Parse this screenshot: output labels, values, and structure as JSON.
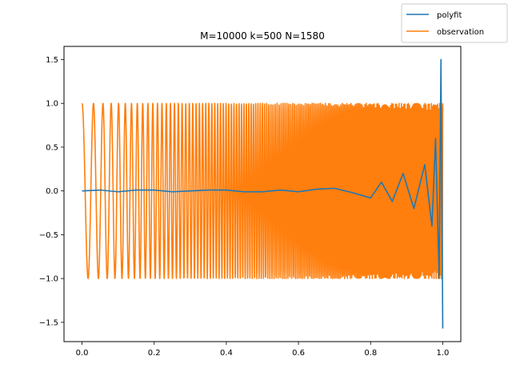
{
  "chart_data": {
    "type": "line",
    "title": "M=10000 k=500 N=1580",
    "xlabel": "",
    "ylabel": "",
    "xlim": [
      -0.05,
      1.05
    ],
    "ylim": [
      -1.72,
      1.65
    ],
    "grid": false,
    "legend_position": "top-right",
    "x_ticks": [
      0.0,
      0.2,
      0.4,
      0.6,
      0.8,
      1.0
    ],
    "x_tick_labels": [
      "0.0",
      "0.2",
      "0.4",
      "0.6",
      "0.8",
      "1.0"
    ],
    "y_ticks": [
      -1.5,
      -1.0,
      -0.5,
      0.0,
      0.5,
      1.0,
      1.5
    ],
    "y_tick_labels": [
      "−1.5",
      "−1.0",
      "−0.5",
      "0.0",
      "0.5",
      "1.0",
      "1.5"
    ],
    "series": [
      {
        "name": "polyfit",
        "color": "#1f77b4",
        "description": "approximately zero across [0, 0.8], with growing oscillation near x=1",
        "x": [
          0.0,
          0.05,
          0.1,
          0.15,
          0.2,
          0.25,
          0.3,
          0.35,
          0.4,
          0.45,
          0.5,
          0.55,
          0.6,
          0.65,
          0.7,
          0.75,
          0.8,
          0.83,
          0.86,
          0.89,
          0.92,
          0.95,
          0.97,
          0.98,
          0.99,
          0.995,
          1.0
        ],
        "y": [
          0.0,
          0.01,
          -0.01,
          0.01,
          0.01,
          -0.01,
          0.0,
          0.01,
          0.01,
          -0.01,
          -0.01,
          0.01,
          -0.01,
          0.02,
          0.03,
          -0.02,
          -0.08,
          0.1,
          -0.12,
          0.2,
          -0.2,
          0.3,
          -0.4,
          0.6,
          -1.0,
          1.5,
          -1.57
        ]
      },
      {
        "name": "observation",
        "color": "#ff7f0e",
        "description": "dense oscillation between -1 and 1 over [0, 1]",
        "x_range": [
          0.0,
          1.0
        ],
        "y_range": [
          -1.0,
          1.0
        ]
      }
    ]
  }
}
